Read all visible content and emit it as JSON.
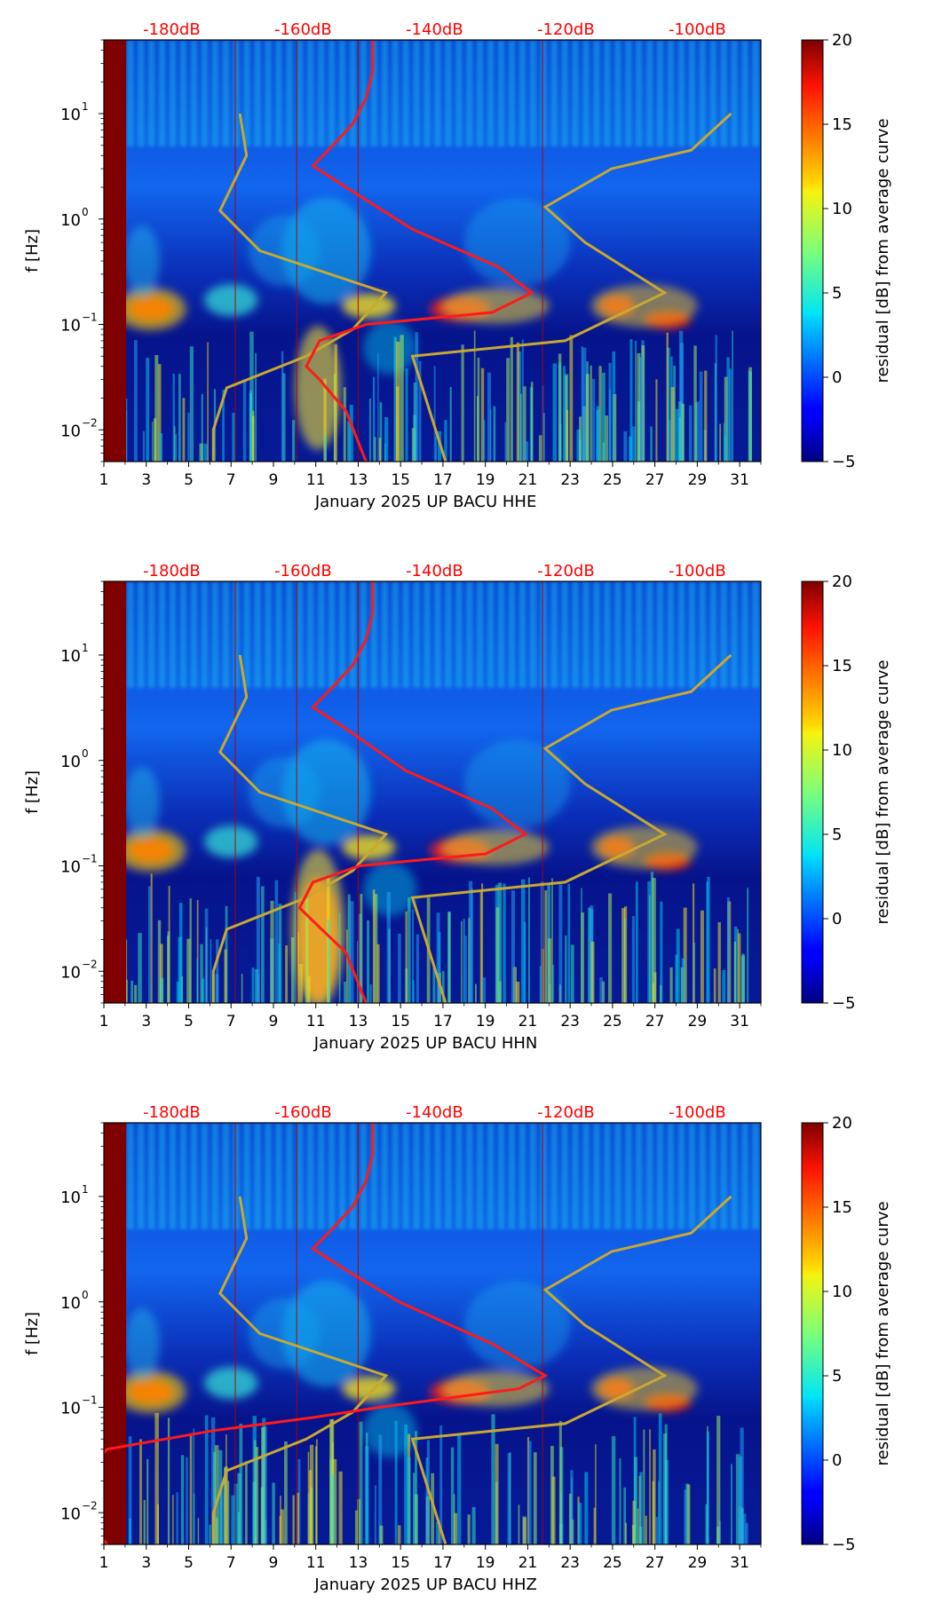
{
  "colors": {
    "red_curve": "#ff1a1a",
    "yellow_curve": "#c8a832",
    "top_labels": "#ff0000"
  },
  "chart_data": [
    {
      "type": "heatmap",
      "component": "HHE",
      "xlabel": "January 2025 UP BACU  HHE",
      "ylabel": "f [Hz]",
      "x_ticks": [
        "1",
        "3",
        "5",
        "7",
        "9",
        "11",
        "13",
        "15",
        "17",
        "19",
        "21",
        "23",
        "25",
        "27",
        "29",
        "31"
      ],
      "xlim": [
        1,
        32
      ],
      "y_scale": "log",
      "ylim": [
        0.005,
        50
      ],
      "y_ticks": [
        {
          "value": 0.01,
          "base": "10",
          "exp": "−2"
        },
        {
          "value": 0.1,
          "base": "10",
          "exp": "−1"
        },
        {
          "value": 1,
          "base": "10",
          "exp": "0"
        },
        {
          "value": 10,
          "base": "10",
          "exp": "1"
        }
      ],
      "top_axis_labels": [
        "-180dB",
        "-160dB",
        "-140dB",
        "-120dB",
        "-100dB"
      ],
      "top_axis_positions_day": [
        4.2,
        10.4,
        16.6,
        22.8,
        29.0
      ],
      "colorbar": {
        "label": "residual [dB] from average curve",
        "min": -5,
        "max": 20,
        "ticks": [
          "−5",
          "0",
          "5",
          "10",
          "15",
          "20"
        ]
      },
      "red_curve_db_vs_freq": [
        [
          -147,
          0.005
        ],
        [
          -150,
          0.015
        ],
        [
          -154,
          0.03
        ],
        [
          -156,
          0.04
        ],
        [
          -154,
          0.07
        ],
        [
          -147,
          0.1
        ],
        [
          -128,
          0.13
        ],
        [
          -122,
          0.2
        ],
        [
          -127,
          0.35
        ],
        [
          -140,
          0.8
        ],
        [
          -150,
          2
        ],
        [
          -155,
          3.2
        ],
        [
          -152,
          5
        ],
        [
          -149,
          8
        ],
        [
          -147,
          14
        ],
        [
          -146,
          25
        ],
        [
          -146,
          50
        ]
      ],
      "yellow_curve_db_vs_freq": [
        [
          -170,
          0.005
        ],
        [
          -170,
          0.01
        ],
        [
          -168,
          0.025
        ],
        [
          -156,
          0.05
        ],
        [
          -149,
          0.09
        ],
        [
          -144,
          0.2
        ],
        [
          -163,
          0.5
        ],
        [
          -169,
          1.2
        ],
        [
          -165,
          4
        ],
        [
          -166,
          10
        ]
      ],
      "yellow_curve2_db_vs_freq": [
        [
          -135,
          0.005
        ],
        [
          -140,
          0.05
        ],
        [
          -117,
          0.07
        ],
        [
          -102,
          0.2
        ],
        [
          -114,
          0.6
        ],
        [
          -120,
          1.3
        ],
        [
          -110,
          3
        ],
        [
          -98,
          4.5
        ],
        [
          -92,
          10
        ]
      ]
    },
    {
      "type": "heatmap",
      "component": "HHN",
      "xlabel": "January 2025 UP BACU  HHN",
      "ylabel": "f [Hz]",
      "x_ticks": [
        "1",
        "3",
        "5",
        "7",
        "9",
        "11",
        "13",
        "15",
        "17",
        "19",
        "21",
        "23",
        "25",
        "27",
        "29",
        "31"
      ],
      "xlim": [
        1,
        32
      ],
      "y_scale": "log",
      "ylim": [
        0.005,
        50
      ],
      "y_ticks": [
        {
          "value": 0.01,
          "base": "10",
          "exp": "−2"
        },
        {
          "value": 0.1,
          "base": "10",
          "exp": "−1"
        },
        {
          "value": 1,
          "base": "10",
          "exp": "0"
        },
        {
          "value": 10,
          "base": "10",
          "exp": "1"
        }
      ],
      "top_axis_labels": [
        "-180dB",
        "-160dB",
        "-140dB",
        "-120dB",
        "-100dB"
      ],
      "top_axis_positions_day": [
        4.2,
        10.4,
        16.6,
        22.8,
        29.0
      ],
      "colorbar": {
        "label": "residual [dB] from average curve",
        "min": -5,
        "max": 20,
        "ticks": [
          "−5",
          "0",
          "5",
          "10",
          "15",
          "20"
        ]
      },
      "red_curve_db_vs_freq": [
        [
          -147,
          0.005
        ],
        [
          -150,
          0.015
        ],
        [
          -155,
          0.03
        ],
        [
          -157,
          0.04
        ],
        [
          -155,
          0.07
        ],
        [
          -148,
          0.1
        ],
        [
          -129,
          0.13
        ],
        [
          -123,
          0.2
        ],
        [
          -128,
          0.35
        ],
        [
          -141,
          0.8
        ],
        [
          -150,
          2
        ],
        [
          -155,
          3.2
        ],
        [
          -152,
          5
        ],
        [
          -149,
          8
        ],
        [
          -147,
          14
        ],
        [
          -146,
          25
        ],
        [
          -146,
          50
        ]
      ],
      "yellow_curve_db_vs_freq": [
        [
          -170,
          0.005
        ],
        [
          -170,
          0.01
        ],
        [
          -168,
          0.025
        ],
        [
          -156,
          0.05
        ],
        [
          -149,
          0.09
        ],
        [
          -144,
          0.2
        ],
        [
          -163,
          0.5
        ],
        [
          -169,
          1.2
        ],
        [
          -165,
          4
        ],
        [
          -166,
          10
        ]
      ],
      "yellow_curve2_db_vs_freq": [
        [
          -135,
          0.005
        ],
        [
          -140,
          0.05
        ],
        [
          -117,
          0.07
        ],
        [
          -102,
          0.2
        ],
        [
          -114,
          0.6
        ],
        [
          -120,
          1.3
        ],
        [
          -110,
          3
        ],
        [
          -98,
          4.5
        ],
        [
          -92,
          10
        ]
      ]
    },
    {
      "type": "heatmap",
      "component": "HHZ",
      "xlabel": "January 2025 UP BACU  HHZ",
      "ylabel": "f [Hz]",
      "x_ticks": [
        "1",
        "3",
        "5",
        "7",
        "9",
        "11",
        "13",
        "15",
        "17",
        "19",
        "21",
        "23",
        "25",
        "27",
        "29",
        "31"
      ],
      "xlim": [
        1,
        32
      ],
      "y_scale": "log",
      "ylim": [
        0.005,
        50
      ],
      "y_ticks": [
        {
          "value": 0.01,
          "base": "10",
          "exp": "−2"
        },
        {
          "value": 0.1,
          "base": "10",
          "exp": "−1"
        },
        {
          "value": 1,
          "base": "10",
          "exp": "0"
        },
        {
          "value": 10,
          "base": "10",
          "exp": "1"
        }
      ],
      "top_axis_labels": [
        "-180dB",
        "-160dB",
        "-140dB",
        "-120dB",
        "-100dB"
      ],
      "top_axis_positions_day": [
        4.2,
        10.4,
        16.6,
        22.8,
        29.0
      ],
      "colorbar": {
        "label": "residual [dB] from average curve",
        "min": -5,
        "max": 20,
        "ticks": [
          "−5",
          "0",
          "5",
          "10",
          "15",
          "20"
        ]
      },
      "red_curve_db_vs_freq": [
        [
          -186,
          0.005
        ],
        [
          -190,
          0.01
        ],
        [
          -191,
          0.02
        ],
        [
          -186,
          0.04
        ],
        [
          -170,
          0.06
        ],
        [
          -155,
          0.08
        ],
        [
          -145,
          0.1
        ],
        [
          -124,
          0.15
        ],
        [
          -120,
          0.2
        ],
        [
          -128,
          0.4
        ],
        [
          -142,
          1
        ],
        [
          -150,
          2
        ],
        [
          -155,
          3.2
        ],
        [
          -152,
          5
        ],
        [
          -149,
          8
        ],
        [
          -147,
          14
        ],
        [
          -146,
          25
        ],
        [
          -146,
          50
        ]
      ],
      "yellow_curve_db_vs_freq": [
        [
          -170,
          0.005
        ],
        [
          -170,
          0.01
        ],
        [
          -168,
          0.025
        ],
        [
          -156,
          0.05
        ],
        [
          -149,
          0.09
        ],
        [
          -144,
          0.2
        ],
        [
          -163,
          0.5
        ],
        [
          -169,
          1.2
        ],
        [
          -165,
          4
        ],
        [
          -166,
          10
        ]
      ],
      "yellow_curve2_db_vs_freq": [
        [
          -135,
          0.005
        ],
        [
          -140,
          0.05
        ],
        [
          -117,
          0.07
        ],
        [
          -102,
          0.2
        ],
        [
          -114,
          0.6
        ],
        [
          -120,
          1.3
        ],
        [
          -110,
          3
        ],
        [
          -98,
          4.5
        ],
        [
          -92,
          10
        ]
      ]
    }
  ]
}
